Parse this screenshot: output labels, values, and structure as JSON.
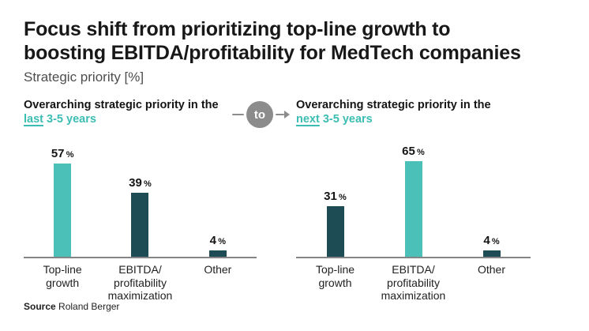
{
  "header": {
    "title_line1": "Focus shift from prioritizing top-line growth to",
    "title_line2": "boosting EBITDA/profitability for MedTech companies",
    "subtitle": "Strategic priority [%]"
  },
  "connector": {
    "label": "to"
  },
  "colors": {
    "teal_light": "#4ac0b8",
    "teal_dark": "#1e4c54",
    "teal_text": "#3cbdb3",
    "connector_gray": "#8c8c8c",
    "axis_gray": "#858585"
  },
  "source": {
    "prefix": "Source",
    "text": "Roland Berger"
  },
  "chart_data": [
    {
      "type": "bar",
      "title": "Overarching strategic priority in the",
      "period_underlined": "last",
      "period_rest": " 3-5 years",
      "categories": [
        "Top-line growth",
        "EBITDA/ profitability maximization",
        "Other"
      ],
      "category_lines": [
        [
          "Top-line",
          "growth"
        ],
        [
          "EBITDA/",
          "profitability",
          "maximization"
        ],
        [
          "Other"
        ]
      ],
      "values": [
        57,
        39,
        4
      ],
      "unit": "%",
      "bar_colors": [
        "teal_light",
        "teal_dark",
        "teal_dark"
      ],
      "ylim": [
        0,
        70
      ],
      "grid": false,
      "legend": false,
      "value_labels": true
    },
    {
      "type": "bar",
      "title": "Overarching strategic priority in the",
      "period_underlined": "next",
      "period_rest": " 3-5 years",
      "categories": [
        "Top-line growth",
        "EBITDA/ profitability maximization",
        "Other"
      ],
      "category_lines": [
        [
          "Top-line",
          "growth"
        ],
        [
          "EBITDA/",
          "profitability",
          "maximization"
        ],
        [
          "Other"
        ]
      ],
      "values": [
        31,
        65,
        4
      ],
      "unit": "%",
      "bar_colors": [
        "teal_dark",
        "teal_light",
        "teal_dark"
      ],
      "ylim": [
        0,
        70
      ],
      "grid": false,
      "legend": false,
      "value_labels": true
    }
  ]
}
